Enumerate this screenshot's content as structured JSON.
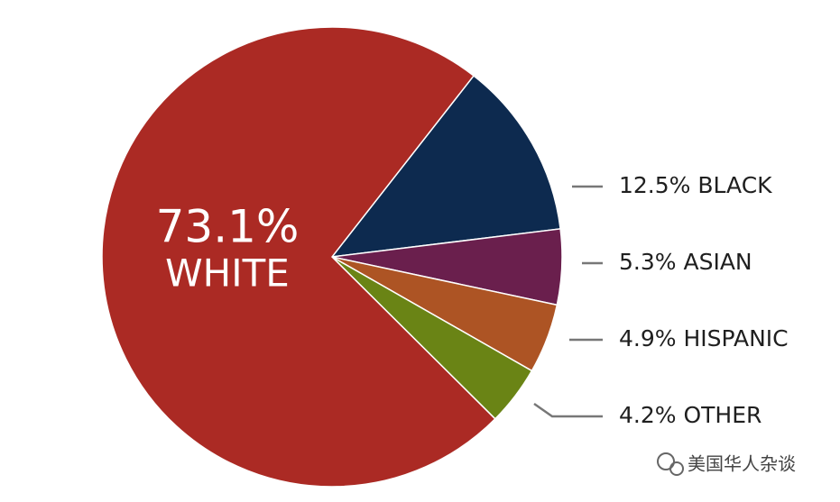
{
  "chart_data": {
    "type": "pie",
    "categories": [
      "BLACK",
      "ASIAN",
      "HISPANIC",
      "OTHER",
      "WHITE"
    ],
    "values": [
      12.5,
      5.3,
      4.9,
      4.2,
      73.1
    ],
    "value_labels": [
      "12.5%",
      "5.3%",
      "4.9%",
      "4.2%",
      "73.1%"
    ],
    "colors": [
      "#0d2a4f",
      "#6a1f4d",
      "#ad5424",
      "#6a8415",
      "#ab2a24"
    ],
    "watermark": "美国华人杂谈"
  }
}
